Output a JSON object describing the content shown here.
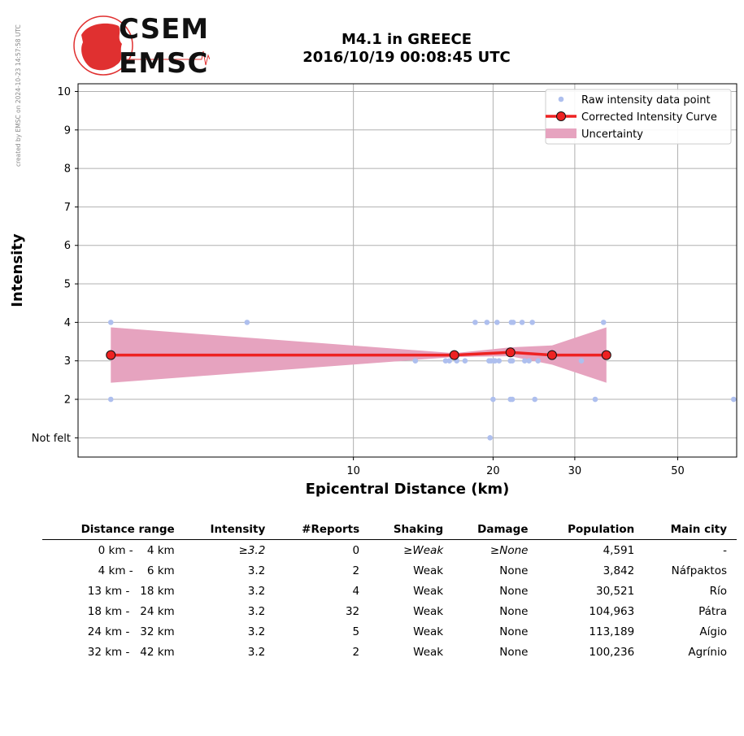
{
  "logo": {
    "line1": "CSEM",
    "line2": "EMSC",
    "colors": {
      "red": "#e03030",
      "dark": "#1a0000"
    }
  },
  "sidenote": "created by EMSC on 2024-10-23 14:57:58 UTC",
  "title": {
    "line1": "M4.1 in GREECE",
    "line2": "2016/10/19 00:08:45 UTC"
  },
  "chart_data": {
    "type": "scatter",
    "xlabel": "Epicentral Distance (km)",
    "ylabel": "Intensity",
    "xscale": "log",
    "xlim": [
      2.55,
      67
    ],
    "ylim": [
      0.5,
      10.2
    ],
    "xticks": [
      {
        "value": 10,
        "label": "10"
      },
      {
        "value": 20,
        "label": "20"
      },
      {
        "value": 30,
        "label": "30"
      },
      {
        "value": 50,
        "label": "50"
      }
    ],
    "yticks": [
      {
        "value": 1,
        "label": "Not felt"
      },
      {
        "value": 2,
        "label": "2"
      },
      {
        "value": 3,
        "label": "3"
      },
      {
        "value": 4,
        "label": "4"
      },
      {
        "value": 5,
        "label": "5"
      },
      {
        "value": 6,
        "label": "6"
      },
      {
        "value": 7,
        "label": "7"
      },
      {
        "value": 8,
        "label": "8"
      },
      {
        "value": 9,
        "label": "9"
      },
      {
        "value": 10,
        "label": "10"
      }
    ],
    "grid": true,
    "legend_position": "top-right",
    "colors": {
      "raw": "#aebfee",
      "curve": "#ee2222",
      "uncertainty": "#e6a3bf",
      "grid": "#b0b0b0"
    },
    "series": [
      {
        "name": "Raw intensity data point",
        "kind": "points",
        "x": [
          3.0,
          3.0,
          5.9,
          13.6,
          15.8,
          16.1,
          16.7,
          17.4,
          18.3,
          19.4,
          19.6,
          19.8,
          19.7,
          20.0,
          20.2,
          20.4,
          20.6,
          21.9,
          22.1,
          21.8,
          22.0,
          21.8,
          23.1,
          23.4,
          23.9,
          24.3,
          24.6,
          25.0,
          22.0,
          31.0,
          33.2,
          34.6,
          20.1,
          66.0
        ],
        "y": [
          4,
          2,
          4,
          3,
          3,
          3,
          3,
          3,
          4,
          4,
          3,
          3,
          1,
          2,
          3,
          4,
          3,
          4,
          4,
          3,
          2,
          2,
          4,
          3,
          3,
          4,
          2,
          3,
          3,
          3,
          2,
          4,
          3,
          2
        ]
      },
      {
        "name": "Corrected Intensity Curve",
        "kind": "line",
        "x": [
          3.0,
          16.5,
          21.8,
          26.8,
          35.1
        ],
        "y": [
          3.15,
          3.15,
          3.22,
          3.15,
          3.15
        ]
      },
      {
        "name": "Uncertainty",
        "kind": "band",
        "x": [
          3.0,
          16.5,
          21.8,
          26.8,
          35.1
        ],
        "y_upper": [
          3.87,
          3.2,
          3.35,
          3.4,
          3.87
        ],
        "y_lower": [
          2.43,
          3.1,
          3.12,
          2.9,
          2.43
        ]
      }
    ]
  },
  "table": {
    "columns": [
      "Distance range",
      "Intensity",
      "#Reports",
      "Shaking",
      "Damage",
      "Population",
      "Main city"
    ],
    "rows": [
      {
        "range": "0 km -    4 km",
        "intensity": "≥3.2",
        "reports": "0",
        "shaking": "≥Weak",
        "damage": "≥None",
        "population": "4,591",
        "city": "-",
        "italic": true
      },
      {
        "range": "4 km -    6 km",
        "intensity": "3.2",
        "reports": "2",
        "shaking": "Weak",
        "damage": "None",
        "population": "3,842",
        "city": "Náfpaktos",
        "italic": false
      },
      {
        "range": "13 km -   18 km",
        "intensity": "3.2",
        "reports": "4",
        "shaking": "Weak",
        "damage": "None",
        "population": "30,521",
        "city": "Río",
        "italic": false
      },
      {
        "range": "18 km -   24 km",
        "intensity": "3.2",
        "reports": "32",
        "shaking": "Weak",
        "damage": "None",
        "population": "104,963",
        "city": "Pátra",
        "italic": false
      },
      {
        "range": "24 km -   32 km",
        "intensity": "3.2",
        "reports": "5",
        "shaking": "Weak",
        "damage": "None",
        "population": "113,189",
        "city": "Aígio",
        "italic": false
      },
      {
        "range": "32 km -   42 km",
        "intensity": "3.2",
        "reports": "2",
        "shaking": "Weak",
        "damage": "None",
        "population": "100,236",
        "city": "Agrínio",
        "italic": false
      }
    ]
  }
}
